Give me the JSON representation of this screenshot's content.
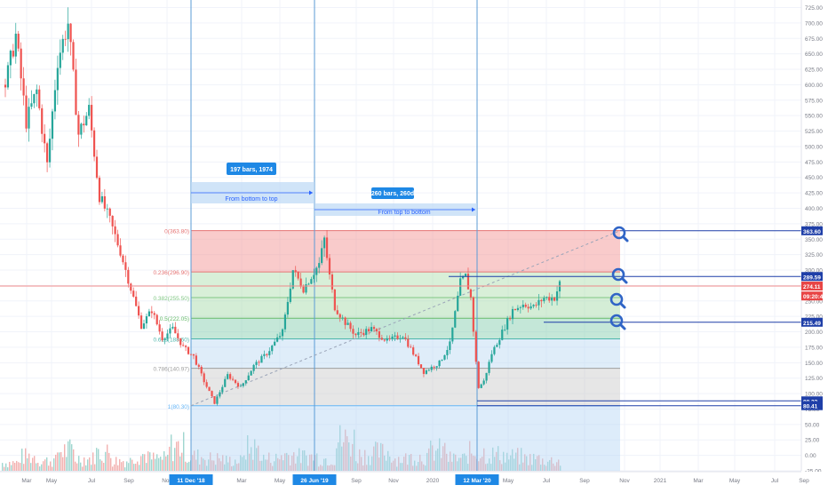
{
  "chart_data": {
    "type": "candlestick",
    "x_tick_labels": [
      "Mar",
      "May",
      "Jul",
      "Sep",
      "Nov",
      "11 Dec '18",
      "Mar",
      "May",
      "26 Jun '19",
      "Sep",
      "Nov",
      "2020",
      "12 Mar '20",
      "May",
      "Jul",
      "Sep",
      "Nov",
      "2021",
      "Mar",
      "May",
      "Jul",
      "Sep"
    ],
    "y_axis": {
      "ylim": [
        -35,
        735
      ],
      "ticks": [
        725,
        700,
        675,
        650,
        625,
        600,
        575,
        550,
        525,
        500,
        475,
        450,
        425,
        400,
        375,
        350,
        325,
        300,
        275,
        250,
        225,
        200,
        175,
        150,
        125,
        100,
        75,
        50,
        25,
        0,
        -25
      ],
      "tick_labels": [
        "725.00",
        "700.00",
        "675.00",
        "650.00",
        "625.00",
        "600.00",
        "575.00",
        "550.00",
        "525.00",
        "500.00",
        "475.00",
        "450.00",
        "425.00",
        "400.00",
        "375.00",
        "350.00",
        "325.00",
        "300.00",
        "275.00",
        "250.00",
        "225.00",
        "200.00",
        "175.00",
        "150.00",
        "125.00",
        "100.00",
        "75.00",
        "50.00",
        "25.00",
        "0.00",
        "-25.00"
      ]
    },
    "price_path": [
      [
        0,
        600
      ],
      [
        4,
        680
      ],
      [
        8,
        540
      ],
      [
        12,
        590
      ],
      [
        16,
        470
      ],
      [
        20,
        640
      ],
      [
        24,
        700
      ],
      [
        28,
        520
      ],
      [
        32,
        560
      ],
      [
        36,
        420
      ],
      [
        40,
        380
      ],
      [
        44,
        330
      ],
      [
        48,
        270
      ],
      [
        52,
        210
      ],
      [
        56,
        235
      ],
      [
        60,
        190
      ],
      [
        64,
        205
      ],
      [
        68,
        175
      ],
      [
        72,
        160
      ],
      [
        76,
        120
      ],
      [
        80,
        85
      ],
      [
        85,
        130
      ],
      [
        90,
        110
      ],
      [
        95,
        145
      ],
      [
        100,
        165
      ],
      [
        106,
        200
      ],
      [
        110,
        300
      ],
      [
        114,
        270
      ],
      [
        120,
        310
      ],
      [
        122,
        350
      ],
      [
        124,
        290
      ],
      [
        126,
        240
      ],
      [
        130,
        215
      ],
      [
        134,
        195
      ],
      [
        140,
        205
      ],
      [
        146,
        185
      ],
      [
        152,
        195
      ],
      [
        156,
        165
      ],
      [
        160,
        135
      ],
      [
        166,
        150
      ],
      [
        170,
        180
      ],
      [
        174,
        280
      ],
      [
        176,
        290
      ],
      [
        178,
        255
      ],
      [
        180,
        150
      ],
      [
        181,
        110
      ],
      [
        183,
        120
      ],
      [
        186,
        165
      ],
      [
        190,
        200
      ],
      [
        194,
        235
      ],
      [
        198,
        245
      ],
      [
        202,
        240
      ],
      [
        206,
        255
      ],
      [
        210,
        255
      ],
      [
        212,
        278
      ]
    ],
    "volume_peaks": [
      0.2,
      0.35,
      0.25,
      0.5,
      0.3,
      0.45,
      0.25,
      0.4,
      0.3,
      0.6,
      0.35,
      0.3,
      0.25,
      0.55,
      0.3,
      0.4,
      0.35,
      0.3,
      0.75,
      0.4,
      0.45,
      0.3,
      0.35,
      0.5,
      0.3,
      0.45,
      0.4,
      0.35,
      0.3,
      0.25,
      0.2
    ],
    "fibonacci": [
      {
        "level": "0",
        "price": 363.8,
        "label": "0(363.80)",
        "zone": "#f28b8b"
      },
      {
        "level": "0.236",
        "price": 296.9,
        "label": "0.236(296.90)",
        "zone": "#a8dba8"
      },
      {
        "level": "0.382",
        "price": 255.5,
        "label": "0.382(255.50)",
        "zone": "#9fd8a4"
      },
      {
        "level": "0.5",
        "price": 222.05,
        "label": "0.5(222.05)",
        "zone": "#7ccaa8"
      },
      {
        "level": "0.618",
        "price": 188.6,
        "label": "0.618(188.60)",
        "zone": "#b7d7f2"
      },
      {
        "level": "0.786",
        "price": 140.97,
        "label": "0.786(140.97)",
        "zone": "#c8c8c8"
      },
      {
        "level": "1",
        "price": 80.3,
        "label": "1(80.30)",
        "zone": "#b3d4f5"
      }
    ],
    "price_marks": [
      {
        "label": "363.60",
        "price": 363.6,
        "bg": "#1f3fa8"
      },
      {
        "label": "289.59",
        "price": 289.59,
        "bg": "#1f3fa8"
      },
      {
        "label": "274.11",
        "price": 274.11,
        "bg": "#e84545"
      },
      {
        "label": "09:20:49",
        "price": 258,
        "bg": "#e84545"
      },
      {
        "label": "215.49",
        "price": 215.49,
        "bg": "#1f3fa8"
      },
      {
        "label": "88.23",
        "price": 88.23,
        "bg": "#1f3fa8"
      },
      {
        "label": "80.41",
        "price": 80.41,
        "bg": "#1f3fa8"
      }
    ],
    "annotations": {
      "range1_badge": "197 bars, 1974",
      "range1_text": "From bottom to top",
      "range2_badge": "260 bars, 260d",
      "range2_text": "From top to bottom"
    },
    "colors": {
      "up": "#26a69a",
      "down": "#ef5350",
      "accent": "#2962ff",
      "axis_text": "#787b86"
    }
  }
}
